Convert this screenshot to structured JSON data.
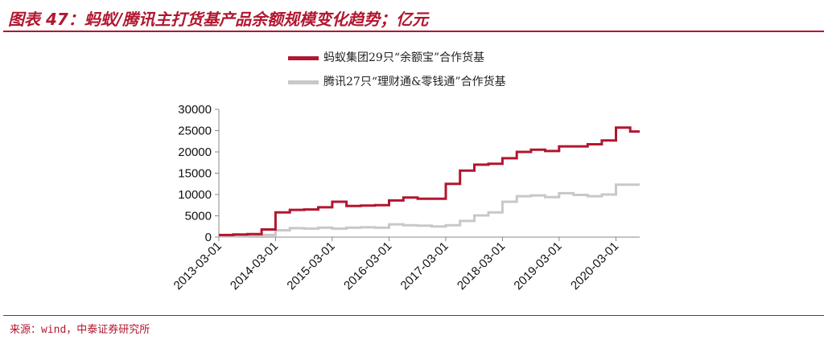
{
  "header": {
    "title": "图表 47：蚂蚁/腾讯主打货基产品余额规模变化趋势；亿元"
  },
  "source": "来源：wind，中泰证券研究所",
  "colors": {
    "accent": "#b2162f",
    "series_ant": "#b2162f",
    "series_tencent": "#c8c8c8"
  },
  "chart_data": {
    "type": "line",
    "ylim": [
      0,
      30000
    ],
    "yticks": [
      "0",
      "5000",
      "10000",
      "15000",
      "20000",
      "25000",
      "30000"
    ],
    "xticks": [
      "2013-03-01",
      "2014-03-01",
      "2015-03-01",
      "2016-03-01",
      "2017-03-01",
      "2018-03-01",
      "2019-03-01",
      "2020-03-01"
    ],
    "x_range": [
      "2013-03-01",
      "2020-08-01"
    ],
    "legend_position": "top-center",
    "series": [
      {
        "name": "蚂蚁集团29只“余额宝”合作货基",
        "color": "#b2162f",
        "step": true,
        "points": [
          [
            "2013-03-01",
            500
          ],
          [
            "2013-06-01",
            600
          ],
          [
            "2013-09-01",
            700
          ],
          [
            "2013-12-01",
            1800
          ],
          [
            "2014-03-01",
            5800
          ],
          [
            "2014-06-01",
            6400
          ],
          [
            "2014-09-01",
            6500
          ],
          [
            "2014-12-01",
            7000
          ],
          [
            "2015-03-01",
            8300
          ],
          [
            "2015-06-01",
            7300
          ],
          [
            "2015-09-01",
            7400
          ],
          [
            "2015-12-01",
            7500
          ],
          [
            "2016-03-01",
            8600
          ],
          [
            "2016-06-01",
            9300
          ],
          [
            "2016-09-01",
            9000
          ],
          [
            "2016-12-01",
            9000
          ],
          [
            "2017-03-01",
            12500
          ],
          [
            "2017-06-01",
            15600
          ],
          [
            "2017-09-01",
            17000
          ],
          [
            "2017-12-01",
            17200
          ],
          [
            "2018-03-01",
            18500
          ],
          [
            "2018-06-01",
            20000
          ],
          [
            "2018-09-01",
            20500
          ],
          [
            "2018-12-01",
            20200
          ],
          [
            "2019-03-01",
            21300
          ],
          [
            "2019-06-01",
            21300
          ],
          [
            "2019-09-01",
            21800
          ],
          [
            "2019-12-01",
            22700
          ],
          [
            "2020-03-01",
            25700
          ],
          [
            "2020-06-01",
            24800
          ],
          [
            "2020-08-01",
            24800
          ]
        ]
      },
      {
        "name": "腾讯27只“理财通&零钱通”合作货基",
        "color": "#c8c8c8",
        "step": true,
        "points": [
          [
            "2013-03-01",
            200
          ],
          [
            "2013-06-01",
            250
          ],
          [
            "2013-09-01",
            300
          ],
          [
            "2013-12-01",
            500
          ],
          [
            "2014-03-01",
            1600
          ],
          [
            "2014-06-01",
            2100
          ],
          [
            "2014-09-01",
            2000
          ],
          [
            "2014-12-01",
            2200
          ],
          [
            "2015-03-01",
            2000
          ],
          [
            "2015-06-01",
            2200
          ],
          [
            "2015-09-01",
            2300
          ],
          [
            "2015-12-01",
            2200
          ],
          [
            "2016-03-01",
            3000
          ],
          [
            "2016-06-01",
            2800
          ],
          [
            "2016-09-01",
            2700
          ],
          [
            "2016-12-01",
            2500
          ],
          [
            "2017-03-01",
            2800
          ],
          [
            "2017-06-01",
            3800
          ],
          [
            "2017-09-01",
            5100
          ],
          [
            "2017-12-01",
            5800
          ],
          [
            "2018-03-01",
            8300
          ],
          [
            "2018-06-01",
            9600
          ],
          [
            "2018-09-01",
            9800
          ],
          [
            "2018-12-01",
            9400
          ],
          [
            "2019-03-01",
            10300
          ],
          [
            "2019-06-01",
            9900
          ],
          [
            "2019-09-01",
            9600
          ],
          [
            "2019-12-01",
            10000
          ],
          [
            "2020-03-01",
            12300
          ],
          [
            "2020-06-01",
            12300
          ],
          [
            "2020-08-01",
            12300
          ]
        ]
      }
    ]
  }
}
